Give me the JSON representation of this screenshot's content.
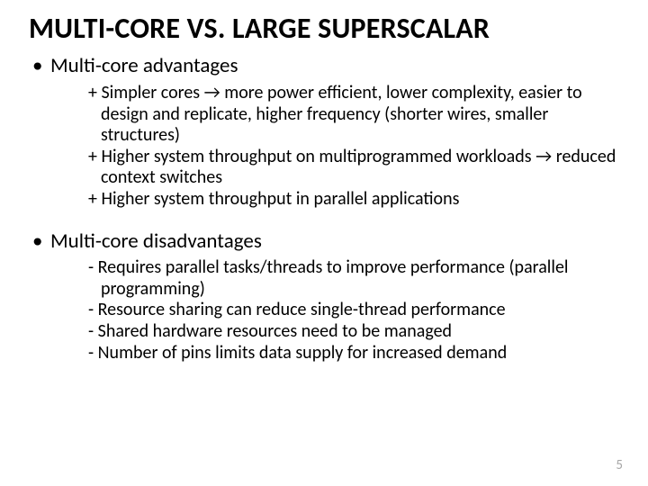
{
  "type": "slide",
  "background_color": "#ffffff",
  "text_color": "#000000",
  "page_number_color": "#a6a6a6",
  "title_fontsize": 32,
  "bullet_fontsize": 23,
  "sub_fontsize": 20,
  "title": "MULTI-CORE VS. LARGE SUPERSCALAR",
  "sections": [
    {
      "heading": "Multi-core advantages",
      "items": [
        "+ Simpler cores → more power efficient, lower complexity, easier to design and replicate, higher frequency (shorter wires, smaller structures)",
        "+ Higher system throughput on multiprogrammed workloads → reduced context switches",
        "+ Higher system throughput in parallel applications"
      ]
    },
    {
      "heading": "Multi-core disadvantages",
      "items": [
        "- Requires parallel tasks/threads to improve performance (parallel programming)",
        "- Resource sharing can reduce single-thread performance",
        "- Shared hardware resources need to be managed",
        "- Number of pins limits data supply for increased demand"
      ]
    }
  ],
  "page_number": "5"
}
